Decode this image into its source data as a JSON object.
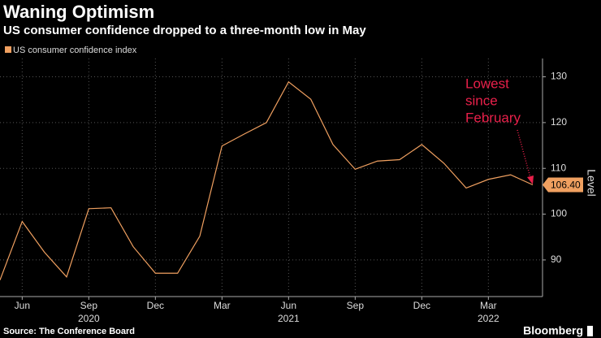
{
  "chart_data": {
    "type": "line",
    "title": "Waning Optimism",
    "subtitle": "US consumer confidence dropped to a three-month low in May",
    "categories": [
      null,
      "Jun",
      null,
      null,
      "Sep",
      null,
      null,
      "Dec",
      null,
      null,
      "Mar",
      null,
      null,
      "Jun",
      null,
      null,
      "Sep",
      null,
      null,
      "Dec",
      null,
      null,
      "Mar",
      null,
      null
    ],
    "year_labels": [
      "2020",
      "2021",
      "2022"
    ],
    "series": [
      {
        "name": "US consumer confidence index",
        "color": "#f0a060",
        "values": [
          85.6,
          98.4,
          91.7,
          86.3,
          101.2,
          101.4,
          92.9,
          87.1,
          87.1,
          95.2,
          114.9,
          117.5,
          120.0,
          128.9,
          125.1,
          115.2,
          109.8,
          111.6,
          111.9,
          115.2,
          111.1,
          105.7,
          107.6,
          108.6,
          106.4
        ],
        "value_labels": [
          null,
          null,
          null,
          null,
          null,
          null,
          null,
          null,
          null,
          null,
          null,
          null,
          null,
          null,
          null,
          null,
          null,
          null,
          null,
          null,
          null,
          null,
          null,
          null,
          "106.40"
        ]
      }
    ],
    "ylim": [
      82,
      134
    ],
    "yticks": [
      90,
      100,
      110,
      120,
      130
    ],
    "y_axis_label": "Level",
    "annotation": [
      "Lowest",
      "since",
      "February"
    ],
    "annotation_color": "#e8204a",
    "source": "Source: The Conference Board",
    "brand": "Bloomberg",
    "grid": true
  }
}
